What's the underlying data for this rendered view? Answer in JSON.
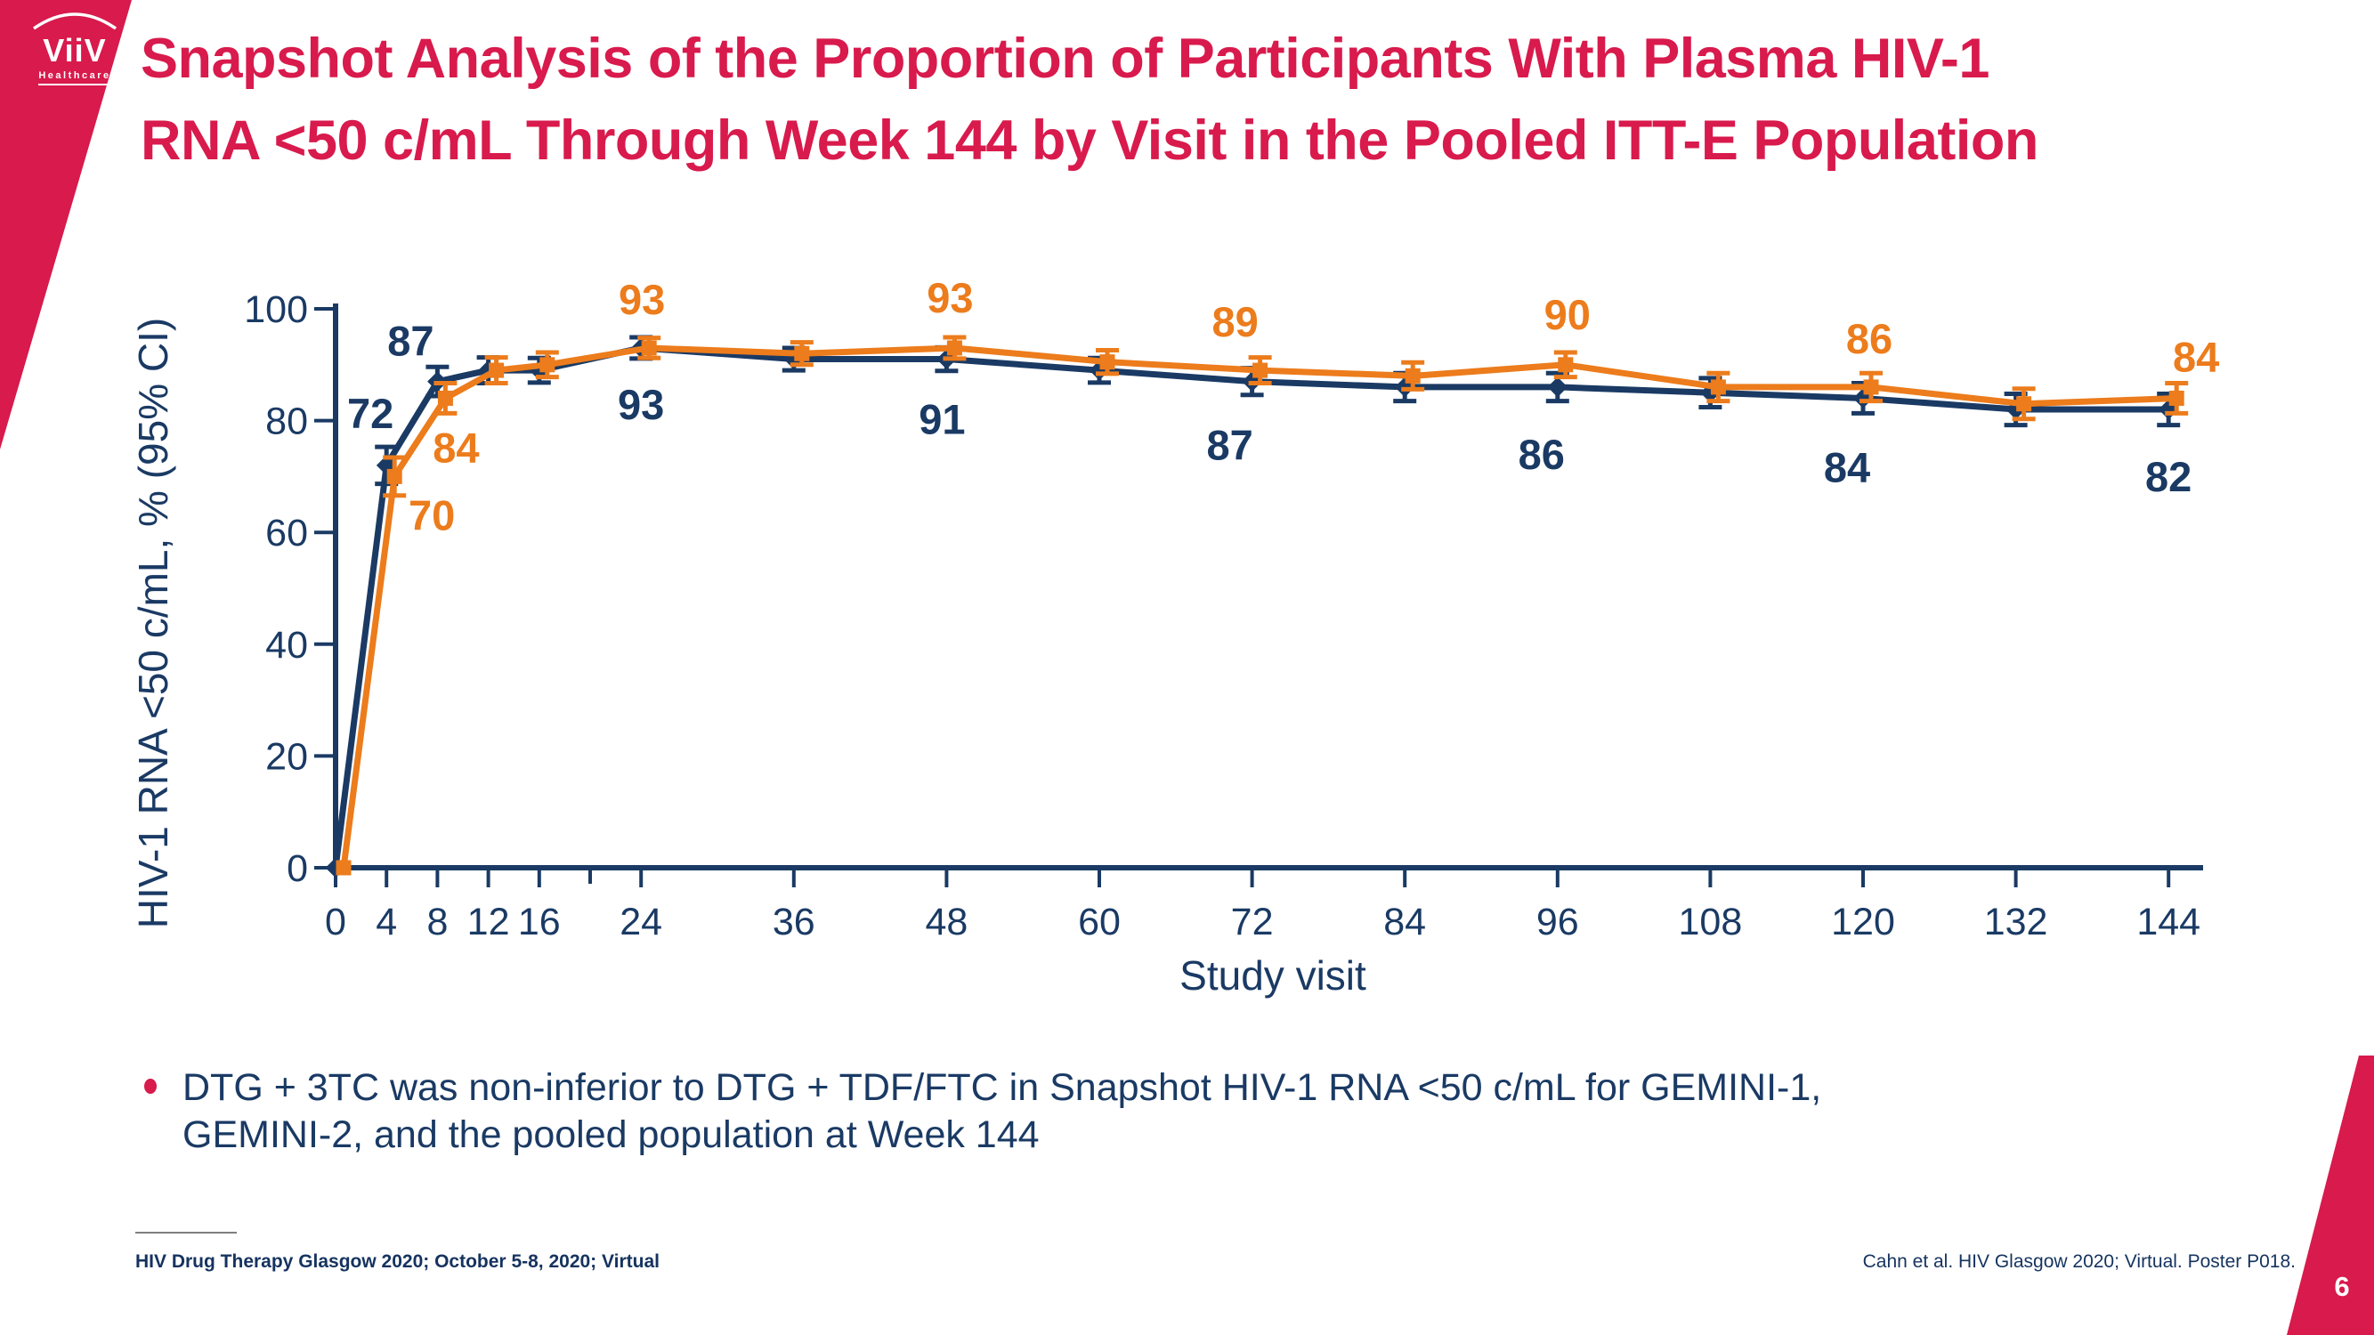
{
  "slide": {
    "logo": {
      "brand": "ViiV",
      "sub": "Healthcare"
    },
    "title": {
      "line1": "Snapshot Analysis of the Proportion of Participants With Plasma HIV-1",
      "line2": "RNA <50 c/mL Through Week 144 by Visit in the Pooled ITT-E Population"
    },
    "bullet": {
      "line1": "DTG + 3TC was non-inferior to DTG + TDF/FTC in Snapshot HIV-1 RNA <50 c/mL for GEMINI-1,",
      "line2": "GEMINI-2, and the pooled population at Week 144"
    },
    "footer_left": "HIV Drug Therapy Glasgow 2020; October 5-8, 2020; Virtual",
    "footer_right": "Cahn et al. HIV Glasgow 2020; Virtual. Poster P018.",
    "page_number": "6",
    "colors": {
      "crimson": "#D81A4C",
      "navy": "#1A3A64",
      "orange": "#EC7C1C"
    }
  },
  "chart_data": {
    "type": "line",
    "title": "",
    "xlabel": "Study visit",
    "ylabel": "HIV-1 RNA <50 c/mL, % (95% CI)",
    "xlim": [
      0,
      144
    ],
    "ylim": [
      0,
      100
    ],
    "grid": false,
    "legend_visible": false,
    "y_ticks": [
      0,
      20,
      40,
      60,
      80,
      100
    ],
    "x_ticks_labeled": [
      0,
      4,
      8,
      12,
      16,
      24,
      36,
      48,
      60,
      72,
      84,
      96,
      108,
      120,
      132,
      144
    ],
    "x_minor_ticks": [
      20
    ],
    "x": [
      0,
      4,
      8,
      12,
      16,
      24,
      36,
      48,
      60,
      72,
      84,
      96,
      108,
      120,
      132,
      144
    ],
    "series": [
      {
        "name": "DTG + 3TC",
        "color": "#1A3A64",
        "marker": "diamond",
        "values": [
          0,
          72,
          87,
          89,
          89,
          93,
          91,
          91,
          89,
          87,
          86,
          86,
          85,
          84,
          82,
          82
        ],
        "ci": [
          0,
          3.3,
          2.6,
          2.3,
          2.2,
          1.9,
          2.0,
          2.1,
          2.2,
          2.4,
          2.5,
          2.5,
          2.6,
          2.7,
          2.8,
          2.8
        ],
        "labels": {
          "4": "72",
          "8": "87",
          "24": "93",
          "48": "91",
          "72": "87",
          "96": "86",
          "120": "84",
          "144": "82"
        }
      },
      {
        "name": "DTG + TDF/FTC",
        "color": "#EC7C1C",
        "marker": "square",
        "values": [
          0,
          70,
          84,
          89,
          90,
          93,
          92,
          93,
          90.5,
          89,
          88,
          90,
          86,
          86,
          83,
          84
        ],
        "ci": [
          0,
          3.4,
          2.7,
          2.3,
          2.2,
          1.8,
          2.0,
          1.9,
          2.1,
          2.3,
          2.4,
          2.2,
          2.5,
          2.5,
          2.7,
          2.7
        ],
        "labels": {
          "4": "70",
          "8": "84",
          "24": "93",
          "48": "93",
          "72": "89",
          "96": "90",
          "120": "86",
          "144": "84"
        }
      }
    ]
  }
}
